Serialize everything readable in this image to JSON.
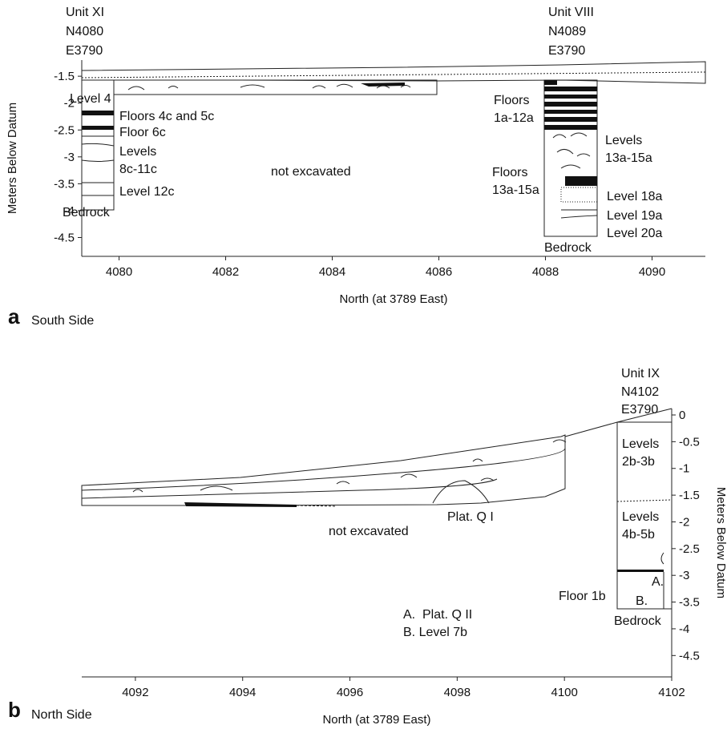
{
  "panels": [
    {
      "letter": "a",
      "caption": "South Side",
      "y_label": "Meters Below Datum",
      "x_label": "North (at 3789 East)",
      "xlim": [
        4079.3,
        4091
      ],
      "ylim": [
        -1.2,
        -4.85
      ],
      "xticks": [
        4080,
        4082,
        4084,
        4086,
        4088,
        4090
      ],
      "yticks": [
        -1.5,
        -2,
        -2.5,
        -3,
        -3.5,
        -4,
        -4.5
      ],
      "unit_left": [
        "Unit XI",
        "N4080",
        "E3790"
      ],
      "unit_right": [
        "Unit VIII",
        "N4089",
        "E3790"
      ],
      "labels": [
        "Level 4",
        "Floors 4c and 5c",
        "Floor 6c",
        "Levels",
        "8c-11c",
        "Level 12c",
        "Bedrock",
        "not excavated",
        "Floors",
        "1a-12a",
        "Levels",
        "13a-15a",
        "Floors",
        "13a-15a",
        "Level 18a",
        "Level 19a",
        "Level 20a",
        "Bedrock"
      ]
    },
    {
      "letter": "b",
      "caption": "North Side",
      "y_label": "Meters Below Datum",
      "x_label": "North (at 3789 East)",
      "xlim": [
        4091,
        4102
      ],
      "ylim": [
        0.12,
        -4.9
      ],
      "xticks": [
        4092,
        4094,
        4096,
        4098,
        4100,
        4102
      ],
      "yticks": [
        0,
        -0.5,
        -1,
        -1.5,
        -2,
        -2.5,
        -3,
        -3.5,
        -4,
        -4.5
      ],
      "unit_right": [
        "Unit IX",
        "N4102",
        "E3790"
      ],
      "labels": [
        "Plat. Q I",
        "not excavated",
        "Levels",
        "2b-3b",
        "Levels",
        "4b-5b",
        "A.",
        "Floor 1b",
        "B.",
        "Bedrock",
        "A.  Plat. Q II",
        "B. Level 7b"
      ]
    }
  ]
}
